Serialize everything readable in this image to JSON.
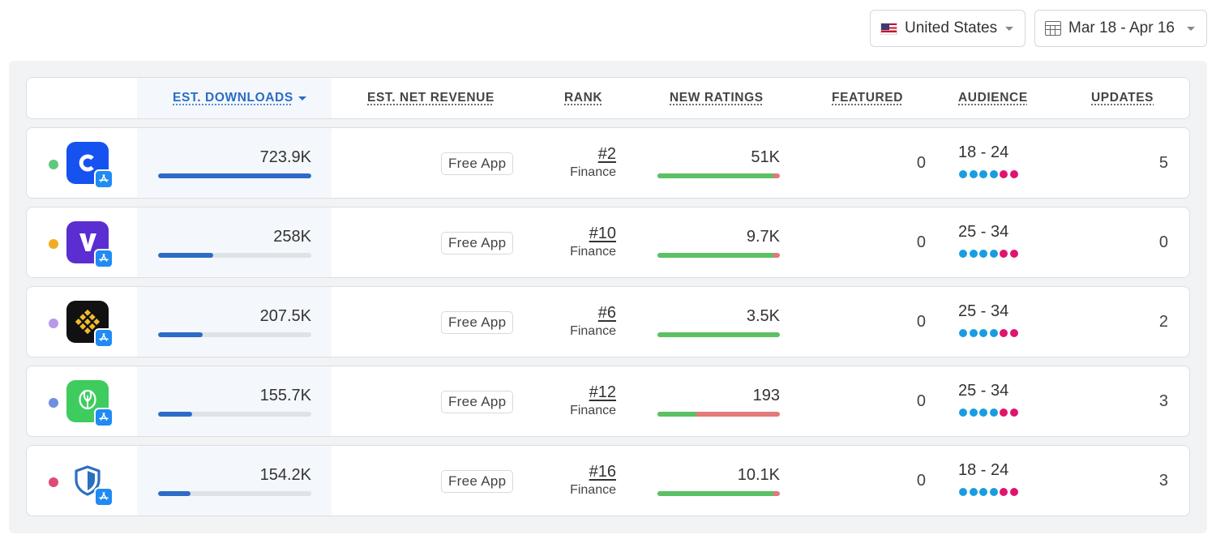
{
  "filters": {
    "country": "United States",
    "date_range": "Mar 18 - Apr 16"
  },
  "columns": {
    "downloads": "EST. DOWNLOADS",
    "revenue": "EST. NET REVENUE",
    "rank": "RANK",
    "ratings": "NEW RATINGS",
    "featured": "FEATURED",
    "audience": "AUDIENCE",
    "updates": "UPDATES"
  },
  "colors": {
    "accent": "#2b6cc4",
    "download_bar": "#2d6bc8",
    "ratings_positive": "#5cc064",
    "ratings_negative": "#e2797a",
    "audience_primary": "#1a9de0",
    "audience_secondary": "#e0136f"
  },
  "rows": [
    {
      "dot_color": "#5ec97b",
      "icon": "coinbase-c-icon",
      "icon_bg": "#1652f0",
      "downloads": "723.9K",
      "downloads_share": 1.0,
      "revenue": "Free App",
      "rank": "#2",
      "category": "Finance",
      "new_ratings": "51K",
      "ratings_positive_share": 0.95,
      "featured": "0",
      "audience": "18 - 24",
      "updates": "5"
    },
    {
      "dot_color": "#f0ad20",
      "icon": "venmo-like-v-icon",
      "icon_bg": "#5a2ed1",
      "downloads": "258K",
      "downloads_share": 0.356,
      "revenue": "Free App",
      "rank": "#10",
      "category": "Finance",
      "new_ratings": "9.7K",
      "ratings_positive_share": 0.95,
      "featured": "0",
      "audience": "25 - 34",
      "updates": "0"
    },
    {
      "dot_color": "#b69ae8",
      "icon": "binance-diamond-icon",
      "icon_bg": "#111111",
      "downloads": "207.5K",
      "downloads_share": 0.287,
      "revenue": "Free App",
      "rank": "#6",
      "category": "Finance",
      "new_ratings": "3.5K",
      "ratings_positive_share": 1.0,
      "featured": "0",
      "audience": "25 - 34",
      "updates": "2"
    },
    {
      "dot_color": "#6f8fe0",
      "icon": "upstart-egg-icon",
      "icon_bg": "#3ecc5f",
      "downloads": "155.7K",
      "downloads_share": 0.215,
      "revenue": "Free App",
      "rank": "#12",
      "category": "Finance",
      "new_ratings": "193",
      "ratings_positive_share": 0.32,
      "featured": "0",
      "audience": "25 - 34",
      "updates": "3"
    },
    {
      "dot_color": "#e04a77",
      "icon": "shield-icon",
      "icon_bg": "#ffffff",
      "downloads": "154.2K",
      "downloads_share": 0.213,
      "revenue": "Free App",
      "rank": "#16",
      "category": "Finance",
      "new_ratings": "10.1K",
      "ratings_positive_share": 0.95,
      "featured": "0",
      "audience": "18 - 24",
      "updates": "3"
    }
  ]
}
